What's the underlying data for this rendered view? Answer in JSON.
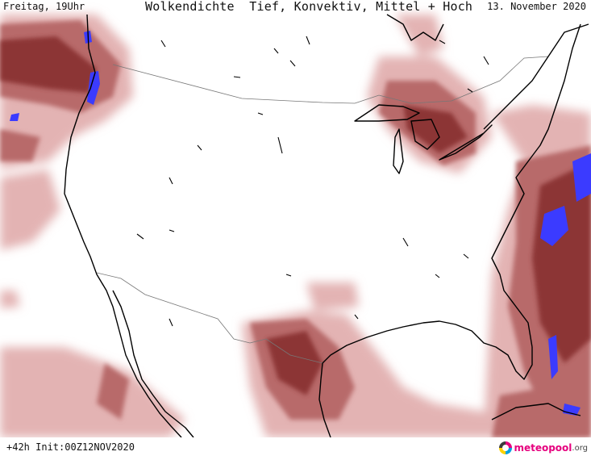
{
  "header": {
    "day_label": "Freitag, 19Uhr",
    "title": "Wolkendichte  Tief, Konvektiv, Mittel + Hoch",
    "date_label": "13. November 2020"
  },
  "footer": {
    "forecast_label": "+42h Init:00Z12NOV2020",
    "logo_brand": "meteopool",
    "logo_tld": ".org"
  },
  "colors": {
    "cloud_light": "#e3b3b3",
    "cloud_mid": "#b86a6a",
    "cloud_dark": "#8c3434",
    "convective": "#3b3bff",
    "coastline": "#000000",
    "border": "#777777"
  }
}
